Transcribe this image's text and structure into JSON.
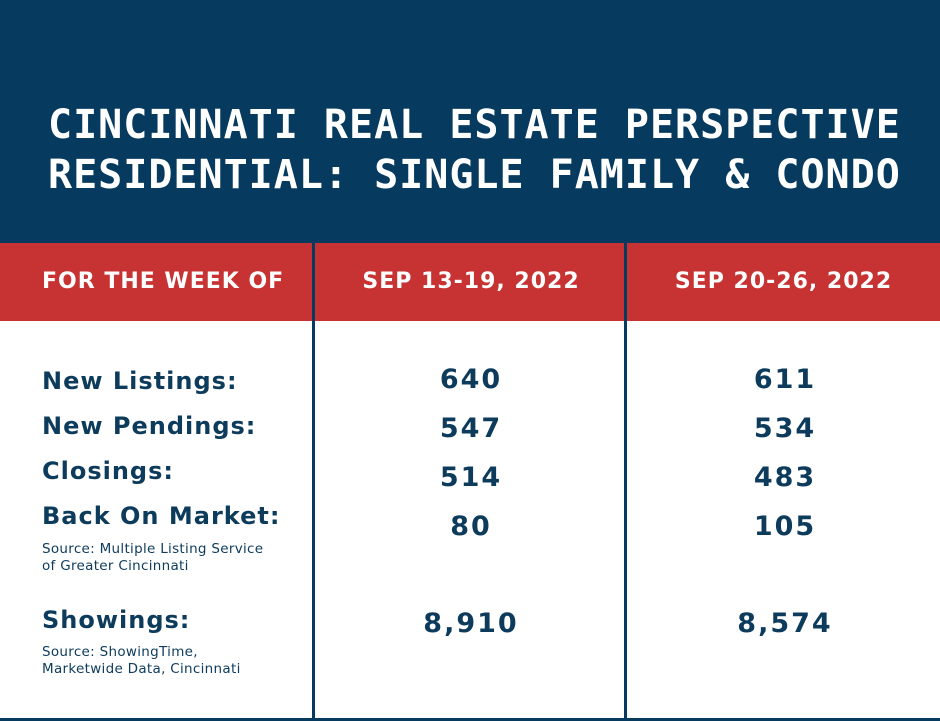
{
  "title": {
    "line1": "CINCINNATI REAL ESTATE PERSPECTIVE",
    "line2": "RESIDENTIAL: SINGLE FAMILY & CONDO"
  },
  "header_row": {
    "label": "FOR THE WEEK OF",
    "col1": "SEP 13-19, 2022",
    "col2": "SEP 20-26, 2022"
  },
  "rows": [
    {
      "label": "New Listings:",
      "col1": "640",
      "col2": "611"
    },
    {
      "label": "New Pendings:",
      "col1": "547",
      "col2": "534"
    },
    {
      "label": "Closings:",
      "col1": "514",
      "col2": "483"
    },
    {
      "label": "Back On Market:",
      "col1": "80",
      "col2": "105"
    },
    {
      "label": "Showings:",
      "col1": "8,910",
      "col2": "8,574"
    }
  ],
  "sources": {
    "mls": {
      "line1": "Source: Multiple Listing Service",
      "line2": "of Greater Cincinnati"
    },
    "showingtime": {
      "line1": "Source: ShowingTime,",
      "line2": "Marketwide Data, Cincinnati"
    }
  },
  "colors": {
    "navy": "#063a5e",
    "red": "#c73232",
    "text": "#0d3b5c"
  }
}
